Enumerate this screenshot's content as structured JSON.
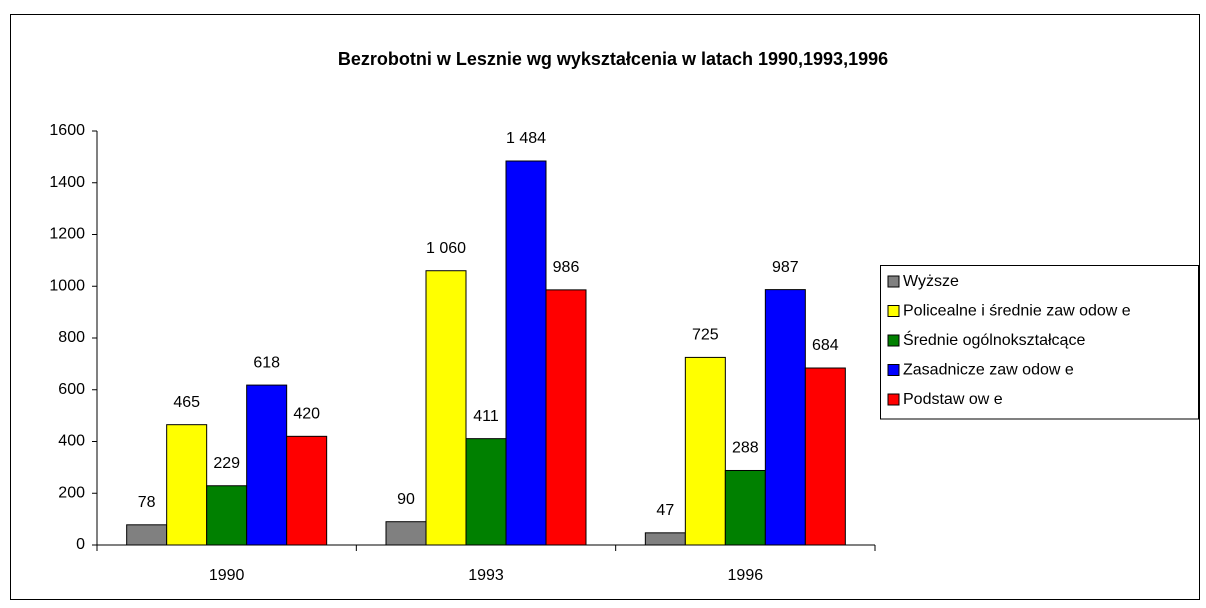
{
  "chart_data": {
    "type": "bar",
    "title": "Bezrobotni w Lesznie wg wykształcenia w latach 1990,1993,1996",
    "categories": [
      "1990",
      "1993",
      "1996"
    ],
    "series": [
      {
        "name": "Wyższe",
        "color": "#808080",
        "values": [
          78,
          90,
          47
        ],
        "value_labels": [
          "78",
          "90",
          "47"
        ]
      },
      {
        "name": "Policealne i średnie zaw odow e",
        "color": "#ffff00",
        "values": [
          465,
          1060,
          725
        ],
        "value_labels": [
          "465",
          "1 060",
          "725"
        ]
      },
      {
        "name": "Średnie ogólnokształcące",
        "color": "#008000",
        "values": [
          229,
          411,
          288
        ],
        "value_labels": [
          "229",
          "411",
          "288"
        ]
      },
      {
        "name": "Zasadnicze  zaw odow e",
        "color": "#0000ff",
        "values": [
          618,
          1484,
          987
        ],
        "value_labels": [
          "618",
          "1 484",
          "987"
        ]
      },
      {
        "name": "Podstaw ow e",
        "color": "#ff0000",
        "values": [
          420,
          986,
          684
        ],
        "value_labels": [
          "420",
          "986",
          "684"
        ]
      }
    ],
    "ylim": [
      0,
      1600
    ],
    "yticks": [
      0,
      200,
      400,
      600,
      800,
      1000,
      1200,
      1400,
      1600
    ],
    "grid": false,
    "legend": "right"
  }
}
